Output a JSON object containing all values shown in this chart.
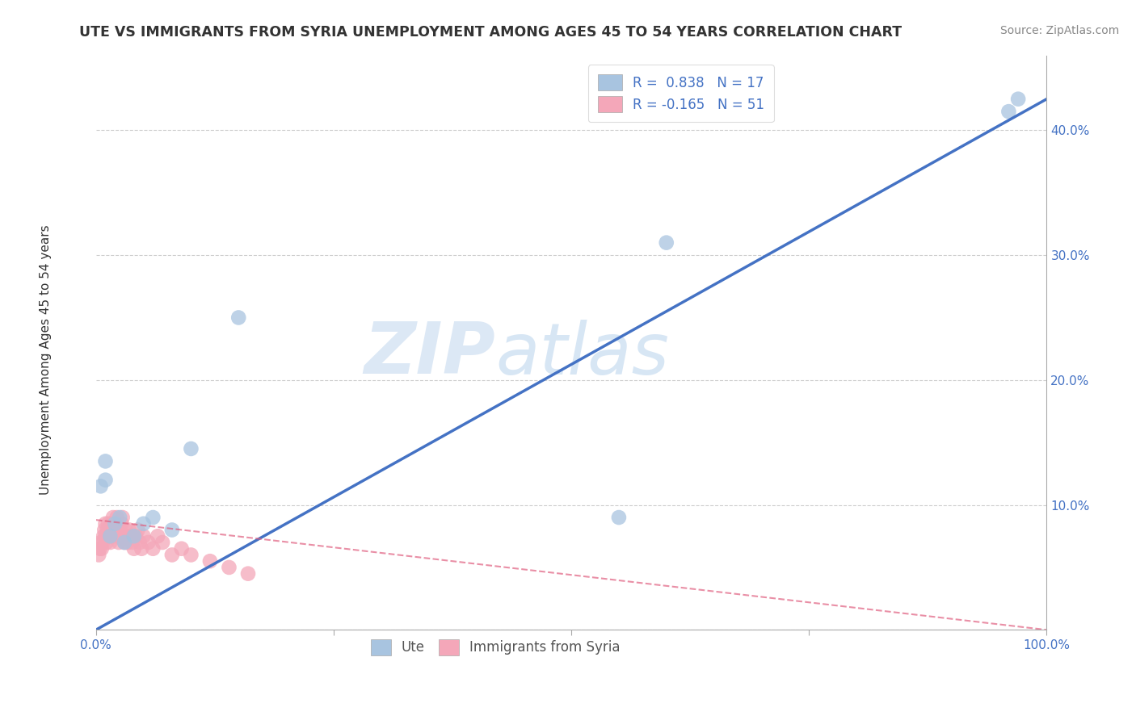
{
  "title": "UTE VS IMMIGRANTS FROM SYRIA UNEMPLOYMENT AMONG AGES 45 TO 54 YEARS CORRELATION CHART",
  "source": "Source: ZipAtlas.com",
  "ylabel": "Unemployment Among Ages 45 to 54 years",
  "xlim": [
    0.0,
    1.0
  ],
  "ylim": [
    0.0,
    0.46
  ],
  "xticks": [
    0.0,
    0.25,
    0.5,
    0.75,
    1.0
  ],
  "xticklabels": [
    "0.0%",
    "",
    "",
    "",
    "100.0%"
  ],
  "ytick_positions": [
    0.0,
    0.1,
    0.2,
    0.3,
    0.4
  ],
  "yticklabels": [
    "",
    "10.0%",
    "20.0%",
    "30.0%",
    "40.0%"
  ],
  "legend_r_ute": "R =  0.838",
  "legend_n_ute": "N = 17",
  "legend_r_syria": "R = -0.165",
  "legend_n_syria": "N = 51",
  "ute_color": "#a8c4e0",
  "syria_color": "#f4a7b9",
  "ute_line_color": "#4472c4",
  "syria_line_color": "#e06080",
  "background_color": "#ffffff",
  "grid_color": "#c8c8c8",
  "watermark_zip": "ZIP",
  "watermark_atlas": "atlas",
  "ute_scatter_x": [
    0.005,
    0.01,
    0.01,
    0.015,
    0.02,
    0.025,
    0.03,
    0.04,
    0.05,
    0.06,
    0.08,
    0.1,
    0.15,
    0.55,
    0.6,
    0.96,
    0.97
  ],
  "ute_scatter_y": [
    0.115,
    0.12,
    0.135,
    0.075,
    0.085,
    0.09,
    0.07,
    0.075,
    0.085,
    0.09,
    0.08,
    0.145,
    0.25,
    0.09,
    0.31,
    0.415,
    0.425
  ],
  "syria_scatter_x": [
    0.003,
    0.004,
    0.005,
    0.006,
    0.007,
    0.008,
    0.009,
    0.01,
    0.01,
    0.011,
    0.012,
    0.013,
    0.014,
    0.015,
    0.016,
    0.017,
    0.018,
    0.019,
    0.02,
    0.021,
    0.022,
    0.023,
    0.024,
    0.025,
    0.026,
    0.027,
    0.028,
    0.029,
    0.03,
    0.031,
    0.032,
    0.033,
    0.035,
    0.036,
    0.038,
    0.04,
    0.042,
    0.044,
    0.046,
    0.048,
    0.05,
    0.055,
    0.06,
    0.065,
    0.07,
    0.08,
    0.09,
    0.1,
    0.12,
    0.14,
    0.16
  ],
  "syria_scatter_y": [
    0.06,
    0.065,
    0.07,
    0.065,
    0.07,
    0.075,
    0.08,
    0.075,
    0.085,
    0.07,
    0.08,
    0.085,
    0.075,
    0.07,
    0.08,
    0.085,
    0.09,
    0.075,
    0.08,
    0.085,
    0.09,
    0.075,
    0.07,
    0.08,
    0.075,
    0.085,
    0.09,
    0.075,
    0.07,
    0.08,
    0.075,
    0.07,
    0.08,
    0.075,
    0.07,
    0.065,
    0.075,
    0.08,
    0.07,
    0.065,
    0.075,
    0.07,
    0.065,
    0.075,
    0.07,
    0.06,
    0.065,
    0.06,
    0.055,
    0.05,
    0.045
  ],
  "ute_line_x": [
    0.0,
    1.0
  ],
  "ute_line_y": [
    0.0,
    0.425
  ],
  "syria_line_x": [
    0.0,
    1.0
  ],
  "syria_line_y": [
    0.088,
    0.0
  ]
}
